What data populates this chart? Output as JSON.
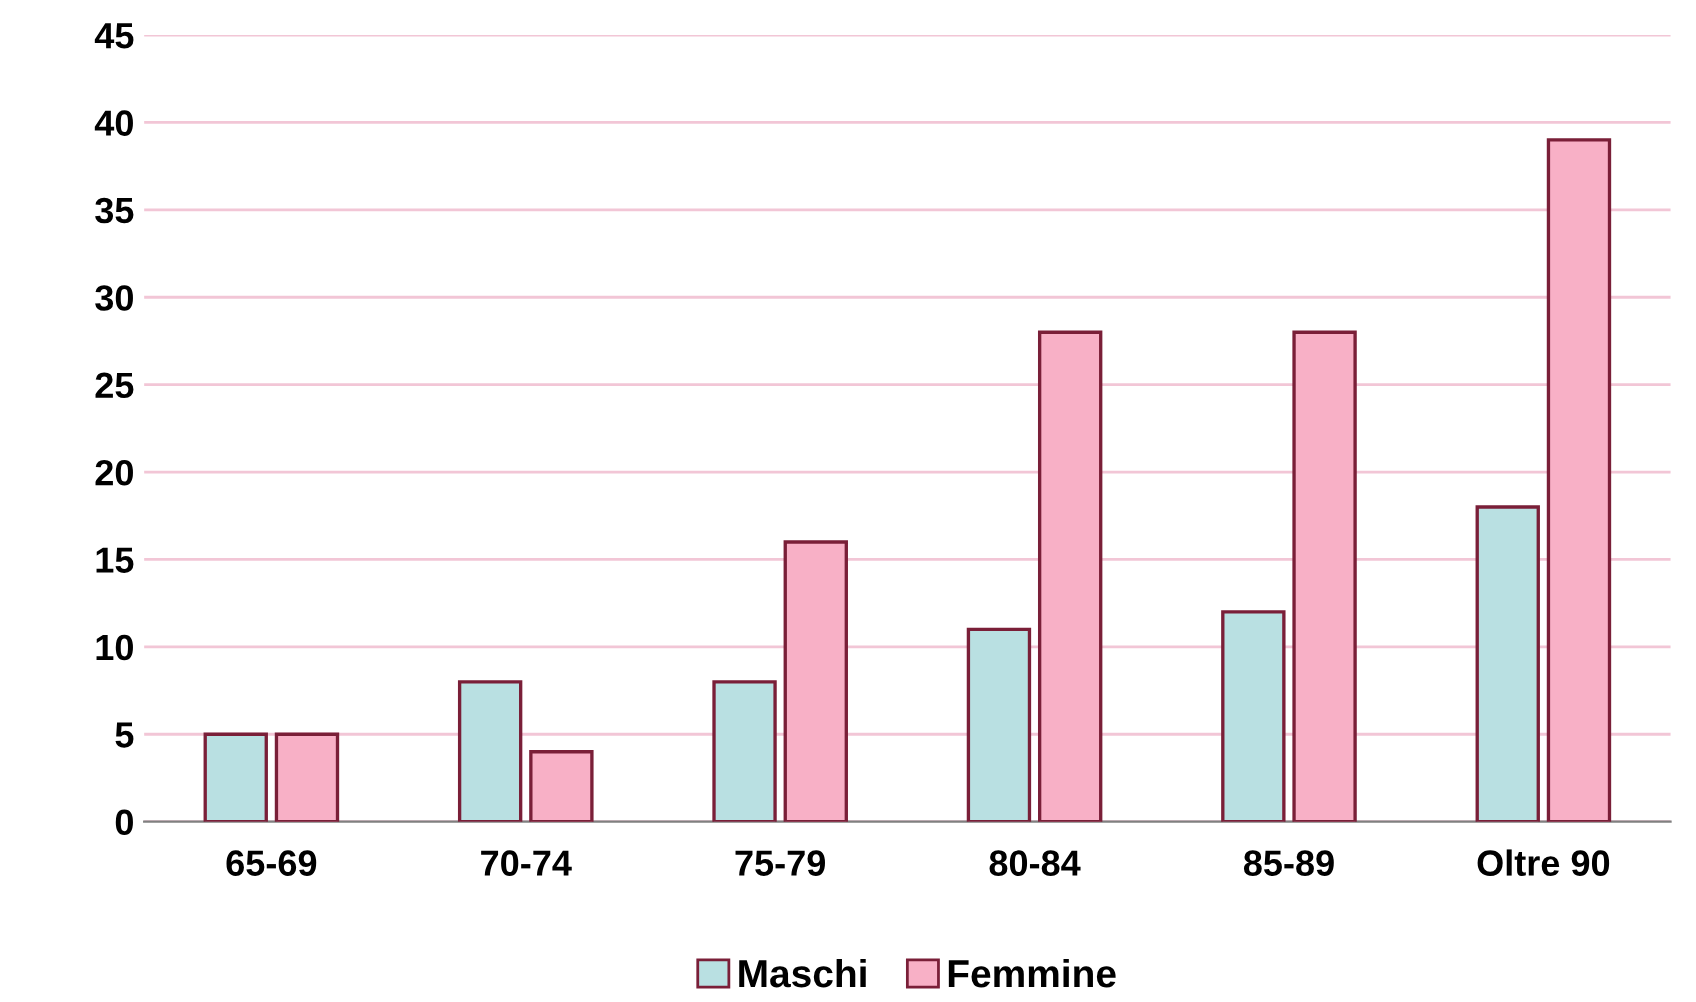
{
  "chart_data": {
    "type": "bar",
    "categories": [
      "65-69",
      "70-74",
      "75-79",
      "80-84",
      "85-89",
      "Oltre 90"
    ],
    "series": [
      {
        "name": "Maschi",
        "color": "#b9e0e2",
        "values": [
          5,
          8,
          8,
          11,
          12,
          18
        ]
      },
      {
        "name": "Femmine",
        "color": "#f8b0c6",
        "values": [
          5,
          4,
          16,
          28,
          28,
          39
        ]
      }
    ],
    "ylim": [
      0,
      45
    ],
    "yticks": [
      0,
      5,
      10,
      15,
      20,
      25,
      30,
      35,
      40,
      45
    ],
    "grid": "y",
    "legend": "bottom"
  }
}
